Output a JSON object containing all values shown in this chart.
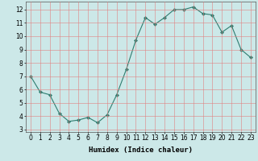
{
  "title": "",
  "xlabel": "Humidex (Indice chaleur)",
  "ylabel": "",
  "x": [
    0,
    1,
    2,
    3,
    4,
    5,
    6,
    7,
    8,
    9,
    10,
    11,
    12,
    13,
    14,
    15,
    16,
    17,
    18,
    19,
    20,
    21,
    22,
    23
  ],
  "y": [
    7.0,
    5.8,
    5.6,
    4.2,
    3.6,
    3.7,
    3.9,
    3.5,
    4.1,
    5.6,
    7.5,
    9.7,
    11.4,
    10.9,
    11.4,
    12.0,
    12.0,
    12.2,
    11.7,
    11.6,
    10.3,
    10.8,
    9.0,
    8.4
  ],
  "line_color": "#2e7d70",
  "marker": "D",
  "marker_size": 2,
  "bg_color": "#cce8e8",
  "grid_color": "#e08080",
  "ylim": [
    2.8,
    12.6
  ],
  "yticks": [
    3,
    4,
    5,
    6,
    7,
    8,
    9,
    10,
    11,
    12
  ],
  "xlim": [
    -0.5,
    23.5
  ],
  "xticks": [
    0,
    1,
    2,
    3,
    4,
    5,
    6,
    7,
    8,
    9,
    10,
    11,
    12,
    13,
    14,
    15,
    16,
    17,
    18,
    19,
    20,
    21,
    22,
    23
  ],
  "tick_fontsize": 5.5,
  "label_fontsize": 6.5
}
